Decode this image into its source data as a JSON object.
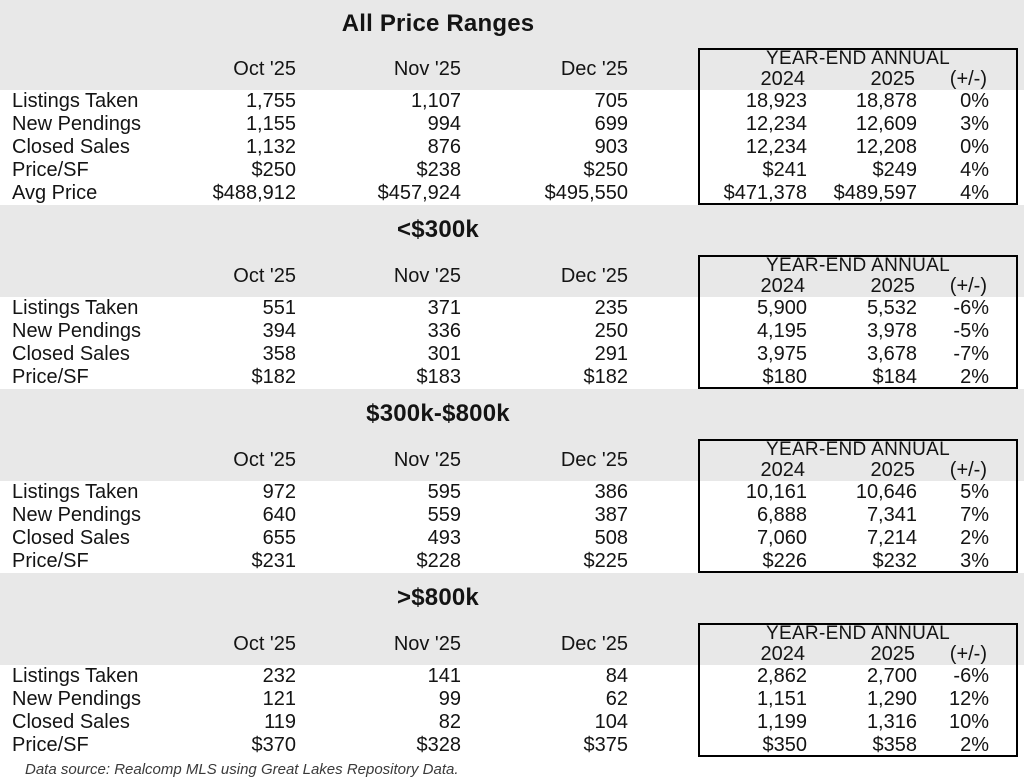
{
  "columns": {
    "months": [
      "Oct '25",
      "Nov '25",
      "Dec '25"
    ],
    "annual_title": "YEAR-END ANNUAL",
    "annual_years": [
      "2024",
      "2025",
      "(+/-)"
    ]
  },
  "colors": {
    "band_gray": "#e8e8e8",
    "text": "#141414",
    "box_border": "#000000",
    "footer_text": "#3a3a3a"
  },
  "footer": {
    "source_note": "Data source: Realcomp MLS using Great Lakes Repository Data."
  },
  "sections": [
    {
      "title": "All Price Ranges",
      "rows": [
        {
          "label": "Listings Taken",
          "oct": "1,755",
          "nov": "1,107",
          "dec": "705",
          "y2024": "18,923",
          "y2025": "18,878",
          "pct": "0%"
        },
        {
          "label": "New Pendings",
          "oct": "1,155",
          "nov": "994",
          "dec": "699",
          "y2024": "12,234",
          "y2025": "12,609",
          "pct": "3%"
        },
        {
          "label": "Closed Sales",
          "oct": "1,132",
          "nov": "876",
          "dec": "903",
          "y2024": "12,234",
          "y2025": "12,208",
          "pct": "0%"
        },
        {
          "label": "Price/SF",
          "oct": "$250",
          "nov": "$238",
          "dec": "$250",
          "y2024": "$241",
          "y2025": "$249",
          "pct": "4%"
        },
        {
          "label": "Avg Price",
          "oct": "$488,912",
          "nov": "$457,924",
          "dec": "$495,550",
          "y2024": "$471,378",
          "y2025": "$489,597",
          "pct": "4%"
        }
      ]
    },
    {
      "title": "<$300k",
      "rows": [
        {
          "label": "Listings Taken",
          "oct": "551",
          "nov": "371",
          "dec": "235",
          "y2024": "5,900",
          "y2025": "5,532",
          "pct": "-6%"
        },
        {
          "label": "New Pendings",
          "oct": "394",
          "nov": "336",
          "dec": "250",
          "y2024": "4,195",
          "y2025": "3,978",
          "pct": "-5%"
        },
        {
          "label": "Closed Sales",
          "oct": "358",
          "nov": "301",
          "dec": "291",
          "y2024": "3,975",
          "y2025": "3,678",
          "pct": "-7%"
        },
        {
          "label": "Price/SF",
          "oct": "$182",
          "nov": "$183",
          "dec": "$182",
          "y2024": "$180",
          "y2025": "$184",
          "pct": "2%"
        }
      ]
    },
    {
      "title": "$300k-$800k",
      "rows": [
        {
          "label": "Listings Taken",
          "oct": "972",
          "nov": "595",
          "dec": "386",
          "y2024": "10,161",
          "y2025": "10,646",
          "pct": "5%"
        },
        {
          "label": "New Pendings",
          "oct": "640",
          "nov": "559",
          "dec": "387",
          "y2024": "6,888",
          "y2025": "7,341",
          "pct": "7%"
        },
        {
          "label": "Closed Sales",
          "oct": "655",
          "nov": "493",
          "dec": "508",
          "y2024": "7,060",
          "y2025": "7,214",
          "pct": "2%"
        },
        {
          "label": "Price/SF",
          "oct": "$231",
          "nov": "$228",
          "dec": "$225",
          "y2024": "$226",
          "y2025": "$232",
          "pct": "3%"
        }
      ]
    },
    {
      "title": ">$800k",
      "rows": [
        {
          "label": "Listings Taken",
          "oct": "232",
          "nov": "141",
          "dec": "84",
          "y2024": "2,862",
          "y2025": "2,700",
          "pct": "-6%"
        },
        {
          "label": "New Pendings",
          "oct": "121",
          "nov": "99",
          "dec": "62",
          "y2024": "1,151",
          "y2025": "1,290",
          "pct": "12%"
        },
        {
          "label": "Closed Sales",
          "oct": "119",
          "nov": "82",
          "dec": "104",
          "y2024": "1,199",
          "y2025": "1,316",
          "pct": "10%"
        },
        {
          "label": "Price/SF",
          "oct": "$370",
          "nov": "$328",
          "dec": "$375",
          "y2024": "$350",
          "y2025": "$358",
          "pct": "2%"
        }
      ]
    }
  ]
}
